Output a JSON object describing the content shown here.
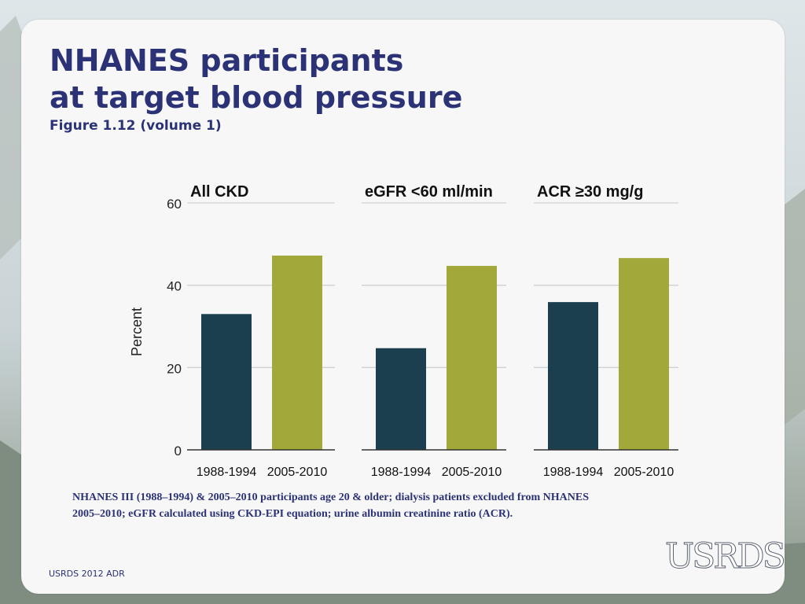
{
  "slide": {
    "title_line1": "NHANES participants",
    "title_line2": "at target blood pressure",
    "subtitle": "Figure 1.12 (volume 1)",
    "note_line1": "NHANES III (1988–1994) & 2005–2010 participants age 20 & older; dialysis patients excluded from NHANES",
    "note_line2": "2005–2010; eGFR calculated using CKD-EPI equation; urine albumin creatinine ratio (ACR).",
    "footer": "USRDS 2012 ADR",
    "logo": "USRDS"
  },
  "colors": {
    "title": "#2b3275",
    "series_1988": "#1b3f4f",
    "series_2005": "#a3a83a",
    "grid": "#cfd1d3",
    "axis": "#333333"
  },
  "chart_data": {
    "type": "bar",
    "ylabel": "Percent",
    "ylim": [
      0,
      60
    ],
    "yticks": [
      0,
      20,
      40,
      60
    ],
    "grid": true,
    "panels": [
      {
        "title": "All CKD",
        "categories": [
          "1988-1994",
          "2005-2010"
        ],
        "values": [
          33,
          47.2
        ]
      },
      {
        "title": "eGFR <60 ml/min",
        "categories": [
          "1988-1994",
          "2005-2010"
        ],
        "values": [
          24.7,
          44.7
        ]
      },
      {
        "title": "ACR ≥30 mg/g",
        "categories": [
          "1988-1994",
          "2005-2010"
        ],
        "values": [
          35.9,
          46.6
        ]
      }
    ]
  }
}
